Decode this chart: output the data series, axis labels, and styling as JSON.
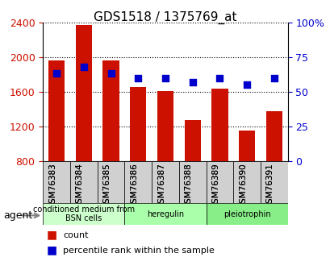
{
  "title": "GDS1518 / 1375769_at",
  "categories": [
    "GSM76383",
    "GSM76384",
    "GSM76385",
    "GSM76386",
    "GSM76387",
    "GSM76388",
    "GSM76389",
    "GSM76390",
    "GSM76391"
  ],
  "count_values": [
    1960,
    2370,
    1960,
    1650,
    1610,
    1270,
    1635,
    1150,
    1380
  ],
  "percentile_values": [
    63,
    68,
    63,
    60,
    60,
    57,
    60,
    55,
    60
  ],
  "ylim_left": [
    800,
    2400
  ],
  "ylim_right": [
    0,
    100
  ],
  "yticks_left": [
    800,
    1200,
    1600,
    2000,
    2400
  ],
  "yticks_right": [
    0,
    25,
    50,
    75,
    100
  ],
  "bar_color": "#cc1100",
  "dot_color": "#0000cc",
  "grid_color": "#000000",
  "agent_groups": [
    {
      "label": "conditioned medium from\nBSN cells",
      "start": 0,
      "end": 3,
      "color": "#ccffcc"
    },
    {
      "label": "heregulin",
      "start": 3,
      "end": 6,
      "color": "#aaffaa"
    },
    {
      "label": "pleiotrophin",
      "start": 6,
      "end": 9,
      "color": "#88ee88"
    }
  ],
  "legend_count_label": "count",
  "legend_percentile_label": "percentile rank within the sample",
  "agent_label": "agent",
  "ylabel_left_color": "#cc1100",
  "ylabel_right_color": "#0000cc",
  "bar_bottom": 800
}
